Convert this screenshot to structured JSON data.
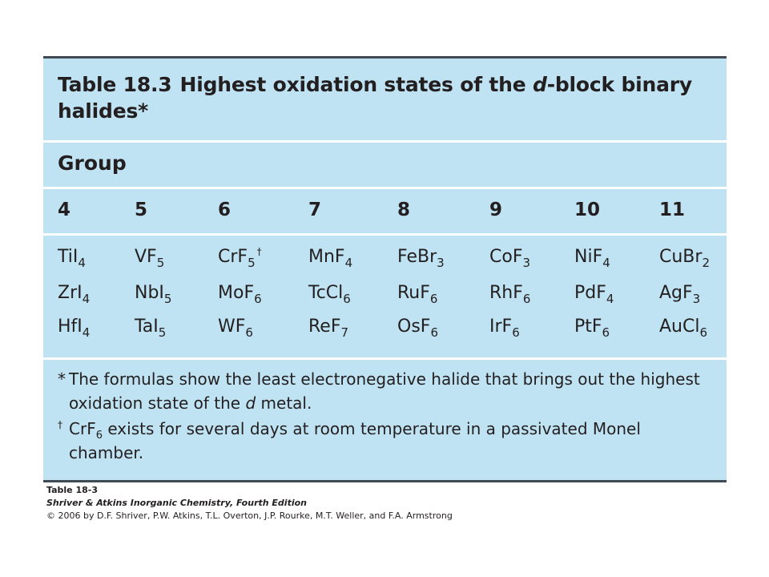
{
  "table": {
    "number": "Table 18.3",
    "title_pre": "Highest oxidation states of the ",
    "title_d": "d",
    "title_post": "-block binary halides*",
    "group_label": "Group",
    "groups": [
      "4",
      "5",
      "6",
      "7",
      "8",
      "9",
      "10",
      "11"
    ],
    "rows": [
      [
        {
          "el": "TiI",
          "sub": "4"
        },
        {
          "el": "VF",
          "sub": "5"
        },
        {
          "el": "CrF",
          "sub": "5",
          "sup": "†"
        },
        {
          "el": "MnF",
          "sub": "4"
        },
        {
          "el": "FeBr",
          "sub": "3"
        },
        {
          "el": "CoF",
          "sub": "3"
        },
        {
          "el": "NiF",
          "sub": "4"
        },
        {
          "el": "CuBr",
          "sub": "2"
        }
      ],
      [
        {
          "el": "ZrI",
          "sub": "4"
        },
        {
          "el": "NbI",
          "sub": "5"
        },
        {
          "el": "MoF",
          "sub": "6"
        },
        {
          "el": "TcCl",
          "sub": "6"
        },
        {
          "el": "RuF",
          "sub": "6"
        },
        {
          "el": "RhF",
          "sub": "6"
        },
        {
          "el": "PdF",
          "sub": "4"
        },
        {
          "el": "AgF",
          "sub": "3"
        }
      ],
      [
        {
          "el": "HfI",
          "sub": "4"
        },
        {
          "el": "TaI",
          "sub": "5"
        },
        {
          "el": "WF",
          "sub": "6"
        },
        {
          "el": "ReF",
          "sub": "7"
        },
        {
          "el": "OsF",
          "sub": "6"
        },
        {
          "el": "IrF",
          "sub": "6"
        },
        {
          "el": "PtF",
          "sub": "6"
        },
        {
          "el": "AuCl",
          "sub": "6"
        }
      ]
    ],
    "note1_mark": "*",
    "note1_line1": "The formulas show the least electronegative halide that brings out the highest",
    "note1_line2_pre": "oxidation state of the ",
    "note1_line2_d": "d",
    "note1_line2_post": " metal.",
    "note2_mark": "†",
    "note2_formula": "CrF",
    "note2_sub": "6",
    "note2_line1_post": " exists for several days at room temperature in a passivated Monel",
    "note2_line2": "chamber."
  },
  "caption": {
    "line1": "Table 18-3",
    "line2": "Shriver & Atkins Inorganic Chemistry, Fourth Edition",
    "line3": "© 2006 by D.F. Shriver, P.W. Atkins, T.L. Overton, J.P. Rourke, M.T. Weller, and F.A. Armstrong"
  }
}
